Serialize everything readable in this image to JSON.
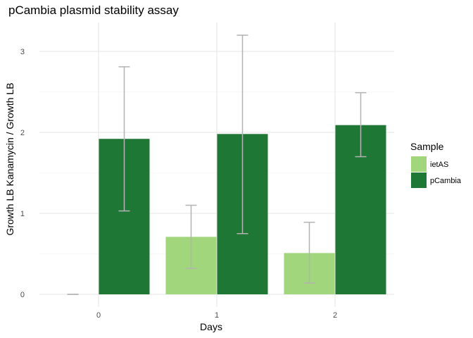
{
  "chart_data": {
    "type": "bar",
    "title": "pCambia plasmid stability assay",
    "xlabel": "Days",
    "ylabel": "Growth LB Kanamycin / Growth LB",
    "categories": [
      "0",
      "1",
      "2"
    ],
    "ylim": [
      -0.1,
      3.35
    ],
    "yticks": [
      0,
      1,
      2,
      3
    ],
    "grid": true,
    "legend": {
      "title": "Sample",
      "placement": "right"
    },
    "series": [
      {
        "name": "ietAS",
        "color": "#a1d67c",
        "values": [
          0.0,
          0.71,
          0.51
        ],
        "err_low": [
          0.0,
          0.32,
          0.14
        ],
        "err_high": [
          0.0,
          1.1,
          0.89
        ]
      },
      {
        "name": "pCambia",
        "color": "#1f7735",
        "values": [
          1.92,
          1.98,
          2.09
        ],
        "err_low": [
          1.03,
          0.75,
          1.7
        ],
        "err_high": [
          2.81,
          3.2,
          2.49
        ]
      }
    ],
    "errorbar_color": "#b3b3b3"
  }
}
